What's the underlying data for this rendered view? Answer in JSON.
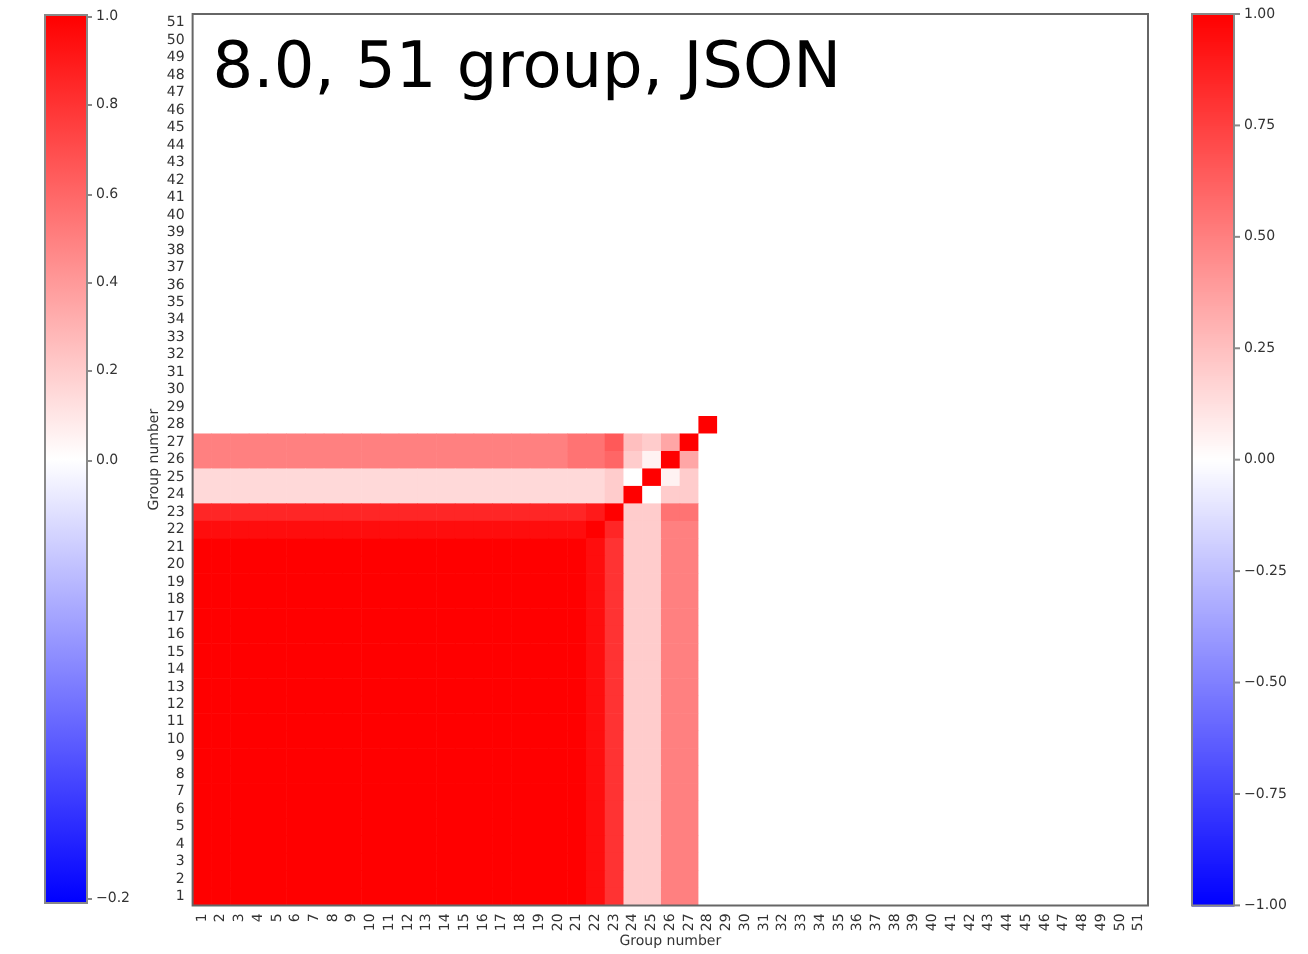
{
  "chart_data": {
    "type": "heatmap",
    "title": "8.0, 51 group, JSON",
    "xlabel": "Group number",
    "ylabel": "Group number",
    "categories": [
      "1",
      "2",
      "3",
      "4",
      "5",
      "6",
      "7",
      "8",
      "9",
      "10",
      "11",
      "12",
      "13",
      "14",
      "15",
      "16",
      "17",
      "18",
      "19",
      "20",
      "21",
      "22",
      "23",
      "24",
      "25",
      "26",
      "27",
      "28",
      "29",
      "30",
      "31",
      "32",
      "33",
      "34",
      "35",
      "36",
      "37",
      "38",
      "39",
      "40",
      "41",
      "42",
      "43",
      "44",
      "45",
      "46",
      "47",
      "48",
      "49",
      "50",
      "51"
    ],
    "y_categories": [
      "51",
      "50",
      "49",
      "48",
      "47",
      "46",
      "45",
      "44",
      "43",
      "42",
      "41",
      "40",
      "39",
      "38",
      "37",
      "36",
      "35",
      "34",
      "33",
      "32",
      "31",
      "30",
      "29",
      "28",
      "27",
      "26",
      "25",
      "24",
      "23",
      "22",
      "21",
      "20",
      "19",
      "18",
      "17",
      "16",
      "15",
      "14",
      "13",
      "12",
      "11",
      "10",
      "9",
      "8",
      "7",
      "6",
      "5",
      "4",
      "3",
      "2",
      "1"
    ],
    "clim": [
      -1,
      1
    ],
    "cticks": [
      {
        "value": 1,
        "label": "1.00"
      },
      {
        "value": 0.75,
        "label": "0.75"
      },
      {
        "value": 0.5,
        "label": "0.50"
      },
      {
        "value": 0.25,
        "label": "0.25"
      },
      {
        "value": 0,
        "label": "0.00"
      },
      {
        "value": -0.25,
        "label": "−0.25"
      },
      {
        "value": -0.5,
        "label": "−0.50"
      },
      {
        "value": -0.75,
        "label": "−0.75"
      },
      {
        "value": -1,
        "label": "−1.00"
      }
    ],
    "cells": [
      [
        0,
        0,
        0,
        0,
        0,
        0,
        0,
        0,
        0,
        0,
        0,
        0,
        0,
        0,
        0,
        0,
        0,
        0,
        0,
        0,
        0,
        0,
        0,
        0,
        0,
        0,
        0,
        0,
        0,
        0,
        0,
        0,
        0,
        0,
        0,
        0,
        0,
        0,
        0,
        0,
        0,
        0,
        0,
        0,
        0,
        0,
        0,
        0,
        0,
        0,
        0
      ],
      [
        0,
        0,
        0,
        0,
        0,
        0,
        0,
        0,
        0,
        0,
        0,
        0,
        0,
        0,
        0,
        0,
        0,
        0,
        0,
        0,
        0,
        0,
        0,
        0,
        0,
        0,
        0,
        0,
        0,
        0,
        0,
        0,
        0,
        0,
        0,
        0,
        0,
        0,
        0,
        0,
        0,
        0,
        0,
        0,
        0,
        0,
        0,
        0,
        0,
        0,
        0
      ],
      [
        0,
        0,
        0,
        0,
        0,
        0,
        0,
        0,
        0,
        null,
        0,
        0,
        0,
        0,
        0,
        null,
        0,
        0,
        0,
        0,
        0,
        0,
        null,
        0,
        0,
        0,
        0,
        0,
        0,
        0,
        0,
        0,
        0,
        0,
        0,
        0,
        0,
        0,
        0,
        0,
        0,
        0,
        0,
        0,
        0,
        0,
        0,
        0,
        0,
        0,
        0
      ],
      [
        0,
        0,
        0,
        0,
        0,
        0,
        0,
        0,
        0,
        0,
        0,
        0,
        0,
        0,
        0,
        0,
        0,
        0,
        0,
        0,
        0,
        0,
        0,
        0,
        0,
        0,
        0,
        0,
        0,
        0,
        0,
        0,
        0,
        0,
        0,
        0,
        0,
        0,
        0,
        0,
        0,
        0,
        0,
        0,
        0,
        0,
        0,
        0,
        0,
        0,
        0
      ],
      [
        0,
        0,
        0,
        0,
        0,
        0,
        0,
        0,
        0,
        0,
        0,
        0,
        0,
        0,
        0,
        null,
        0,
        0,
        0,
        0,
        0,
        0,
        0,
        0,
        0,
        0,
        null,
        0,
        0,
        0,
        0,
        0,
        0,
        0,
        0,
        0,
        0,
        0,
        0,
        0,
        0,
        0,
        0,
        0,
        0,
        0,
        0,
        0,
        0,
        0,
        0
      ],
      [
        0,
        0,
        0,
        0,
        0,
        0,
        0,
        0,
        0,
        0,
        0,
        0,
        0,
        0,
        0,
        0,
        0,
        0,
        0,
        0,
        0,
        0,
        0,
        0,
        0,
        0,
        0,
        0,
        0,
        0,
        0,
        0,
        0,
        0,
        0,
        0,
        0,
        0,
        0,
        0,
        0,
        0,
        0,
        0,
        0,
        0,
        0,
        0,
        0,
        0,
        0
      ],
      [
        0,
        0,
        0,
        0,
        0,
        0,
        0,
        0,
        0,
        0,
        0,
        0,
        0,
        0,
        0,
        0,
        0,
        0,
        0,
        0,
        0,
        0,
        0,
        0,
        0,
        0,
        0,
        0,
        0,
        0,
        0,
        0,
        0,
        0,
        0,
        0,
        0,
        0,
        0,
        0,
        0,
        0,
        0,
        0,
        0,
        0,
        0,
        0,
        0,
        0,
        0
      ],
      [
        0,
        0,
        0,
        0,
        0,
        0,
        0,
        0,
        0,
        0,
        0,
        0,
        0,
        0,
        0,
        0,
        0,
        0,
        0,
        0,
        0,
        0,
        0,
        0,
        0,
        0,
        0,
        0,
        0,
        0,
        0,
        0,
        0,
        0,
        0,
        0,
        0,
        0,
        0,
        0,
        0,
        0,
        0,
        0,
        0,
        0,
        0,
        0,
        0,
        0,
        0
      ],
      [
        0,
        0,
        0,
        0,
        0,
        0,
        0,
        0,
        0,
        0,
        0,
        0,
        0,
        0,
        0,
        0,
        0,
        0,
        0,
        0,
        0,
        0,
        0,
        0,
        0,
        0,
        0,
        0,
        0,
        0,
        0,
        0,
        0,
        0,
        0,
        0,
        0,
        0,
        0,
        0,
        0,
        0,
        0,
        0,
        0,
        0,
        0,
        0,
        0,
        0,
        0
      ],
      [
        0,
        0,
        0,
        0,
        0,
        0,
        0,
        0,
        0,
        0,
        0,
        0,
        0,
        0,
        0,
        0,
        0,
        0,
        0,
        0,
        0,
        0,
        0,
        0,
        0,
        0,
        0,
        0,
        0,
        0,
        0,
        0,
        0,
        0,
        0,
        0,
        0,
        0,
        0,
        0,
        0,
        0,
        0,
        0,
        0,
        0,
        0,
        0,
        0,
        0,
        0
      ],
      [
        0,
        0,
        0,
        0,
        0,
        0,
        0,
        0,
        0,
        0,
        0,
        0,
        0,
        0,
        0,
        0,
        0,
        0,
        0,
        0,
        0,
        0,
        0,
        0,
        0,
        0,
        0,
        0,
        0,
        0,
        0,
        0,
        0,
        0,
        0,
        0,
        0,
        0,
        0,
        0,
        0,
        0,
        0,
        0,
        0,
        0,
        0,
        0,
        0,
        0,
        0
      ],
      [
        0,
        0,
        0,
        0,
        0,
        0,
        0,
        0,
        0,
        0,
        0,
        0,
        0,
        0,
        0,
        0,
        0,
        0,
        0,
        0,
        0,
        0,
        0,
        0,
        0,
        0,
        0,
        0,
        0,
        0,
        0,
        0,
        0,
        0,
        0,
        0,
        0,
        0,
        0,
        0,
        0,
        0,
        0,
        0,
        0,
        0,
        0,
        0,
        0,
        0,
        0
      ],
      [
        0,
        0,
        0,
        0,
        0,
        0,
        0,
        0,
        0,
        0,
        0,
        0,
        0,
        0,
        0,
        0,
        0,
        0,
        0,
        0,
        0,
        0,
        0,
        0,
        0,
        0,
        0,
        0,
        0,
        0,
        0,
        0,
        0,
        0,
        0,
        0,
        0,
        0,
        0,
        0,
        0,
        0,
        0,
        0,
        0,
        0,
        0,
        0,
        0,
        0,
        0
      ],
      [
        0,
        0,
        0,
        0,
        0,
        0,
        0,
        0,
        0,
        0,
        0,
        0,
        0,
        0,
        0,
        0,
        0,
        0,
        0,
        0,
        0,
        0,
        0,
        0,
        0,
        0,
        0,
        0,
        0,
        0,
        0,
        0,
        0,
        0,
        0,
        0,
        0,
        0,
        0,
        0,
        0,
        0,
        0,
        0,
        0,
        0,
        0,
        0,
        0,
        0,
        0
      ],
      [
        0,
        0,
        0,
        0,
        0,
        0,
        0,
        0,
        0,
        0,
        0,
        0,
        0,
        0,
        0,
        0,
        0,
        0,
        0,
        0,
        0,
        0,
        0,
        0,
        0,
        0,
        0,
        0,
        0,
        0,
        0,
        0,
        0,
        0,
        0,
        0,
        0,
        0,
        0,
        0,
        0,
        0,
        0,
        0,
        0,
        0,
        0,
        0,
        0,
        0,
        0
      ],
      [
        0,
        0,
        0,
        0,
        0,
        0,
        0,
        0,
        0,
        0,
        0,
        0,
        0,
        0,
        0,
        0,
        0,
        0,
        0,
        0,
        0,
        0,
        0,
        0,
        0,
        0,
        0,
        0,
        0,
        0,
        0,
        0,
        0,
        0,
        0,
        0,
        0,
        0,
        0,
        0,
        0,
        0,
        0,
        0,
        0,
        0,
        0,
        0,
        0,
        0,
        0
      ],
      [
        0,
        0,
        0,
        0,
        0,
        0,
        0,
        0,
        0,
        0,
        0,
        0,
        0,
        0,
        0,
        0,
        0,
        0,
        0,
        0,
        0,
        0,
        0,
        0,
        0,
        0,
        0,
        0,
        0,
        0,
        0,
        0,
        0,
        0,
        0,
        0,
        0,
        0,
        0,
        0,
        0,
        0,
        0,
        0,
        0,
        0,
        0,
        0,
        0,
        0,
        0
      ],
      [
        0,
        0,
        0,
        0,
        0,
        0,
        0,
        0,
        0,
        0,
        0,
        0,
        0,
        0,
        0,
        0,
        0,
        0,
        0,
        0,
        0,
        0,
        0,
        0,
        0,
        0,
        0,
        0,
        0,
        0,
        0,
        0,
        0,
        0,
        0,
        0,
        0,
        0,
        0,
        0,
        0,
        0,
        0,
        0,
        0,
        0,
        0,
        0,
        0,
        0,
        0
      ],
      [
        0,
        0,
        0,
        0,
        0,
        0,
        0,
        0,
        0,
        0,
        0,
        0,
        0,
        0,
        0,
        0,
        0,
        0,
        0,
        0,
        0,
        0,
        0,
        0,
        0,
        0,
        0,
        0,
        0,
        0,
        0,
        0,
        0,
        0,
        0,
        0,
        0,
        0,
        0,
        0,
        0,
        0,
        0,
        0,
        0,
        0,
        0,
        0,
        0,
        0,
        0
      ],
      [
        0,
        0,
        0,
        0,
        0,
        0,
        0,
        0,
        0,
        0,
        0,
        0,
        0,
        0,
        0,
        0,
        0,
        0,
        0,
        0,
        0,
        0,
        0,
        0,
        0,
        0,
        0,
        0,
        0,
        0,
        0,
        0,
        0,
        0,
        0,
        0,
        0,
        0,
        0,
        0,
        0,
        0,
        0,
        0,
        0,
        0,
        0,
        0,
        0,
        0,
        0
      ],
      [
        0,
        0,
        0,
        0,
        0,
        0,
        0,
        0,
        0,
        0,
        0,
        0,
        0,
        0,
        0,
        0,
        0,
        0,
        0,
        0,
        0,
        0,
        0,
        0,
        0,
        0,
        0,
        0,
        0,
        0,
        0,
        0,
        0,
        0,
        0,
        0,
        0,
        0,
        0,
        0,
        0,
        0,
        0,
        0,
        0,
        0,
        0,
        0,
        0,
        0,
        0
      ],
      [
        0,
        0,
        0,
        0,
        0,
        0,
        0,
        0,
        0,
        0,
        0,
        0,
        0,
        0,
        0,
        0,
        0,
        0,
        0,
        0,
        0,
        0,
        0,
        0,
        0,
        0,
        0,
        0,
        0,
        0,
        0,
        0,
        0,
        0,
        0,
        0,
        0,
        0,
        0,
        0,
        0,
        0,
        0,
        0,
        0,
        0,
        0,
        0,
        0,
        0,
        0
      ],
      [
        0,
        0,
        0,
        0,
        0,
        0,
        0,
        0,
        0,
        0,
        0,
        0,
        0,
        0,
        0,
        0,
        0,
        0,
        0,
        0,
        0,
        0,
        0,
        0,
        0,
        0,
        0,
        0,
        0,
        0,
        0,
        0,
        0,
        0,
        0,
        0,
        0,
        0,
        0,
        0,
        0,
        0,
        0,
        0,
        0,
        0,
        0,
        0,
        0,
        0,
        0
      ],
      [
        0,
        0,
        0,
        0,
        0,
        0,
        0,
        0,
        0,
        0,
        0,
        0,
        0,
        0,
        0,
        0,
        0,
        0,
        0,
        0,
        0,
        0,
        0,
        0,
        0,
        0,
        0,
        1,
        0,
        0,
        0,
        0,
        0,
        0,
        0,
        0,
        0,
        0,
        0,
        0,
        0,
        0,
        0,
        0,
        0,
        0,
        0,
        0,
        0,
        0,
        0
      ],
      [
        0.5,
        0.5,
        0.5,
        0.5,
        0.5,
        0.5,
        0.5,
        0.5,
        0.5,
        0.5,
        0.5,
        0.5,
        0.5,
        0.5,
        0.5,
        0.5,
        0.5,
        0.5,
        0.5,
        0.5,
        0.55,
        0.55,
        0.65,
        0.25,
        0.2,
        0.35,
        1,
        0,
        0,
        0,
        0,
        0,
        0,
        0,
        0,
        0,
        0,
        0,
        0,
        0,
        0,
        0,
        0,
        0,
        0,
        0,
        0,
        0,
        0,
        0,
        0
      ],
      [
        0.5,
        0.5,
        0.5,
        0.5,
        0.5,
        0.5,
        0.5,
        0.5,
        0.5,
        0.5,
        0.5,
        0.5,
        0.5,
        0.5,
        0.5,
        0.5,
        0.5,
        0.5,
        0.5,
        0.5,
        0.55,
        0.55,
        0.6,
        0.2,
        0.05,
        1,
        0.35,
        0,
        0,
        0,
        0,
        0,
        0,
        0,
        0,
        0,
        0,
        0,
        0,
        0,
        0,
        0,
        0,
        0,
        0,
        0,
        0,
        0,
        0,
        0,
        0
      ],
      [
        0.15,
        0.15,
        0.15,
        0.15,
        0.15,
        0.15,
        0.15,
        0.15,
        0.15,
        0.15,
        0.15,
        0.15,
        0.15,
        0.15,
        0.15,
        0.15,
        0.15,
        0.15,
        0.15,
        0.15,
        0.15,
        0.15,
        0.2,
        0,
        1,
        0.05,
        0.2,
        0,
        0,
        0,
        0,
        0,
        0,
        0,
        0,
        0,
        0,
        0,
        0,
        0,
        0,
        0,
        0,
        0,
        0,
        0,
        0,
        0,
        0,
        0,
        0
      ],
      [
        0.15,
        0.15,
        0.15,
        0.15,
        0.15,
        0.15,
        0.15,
        0.15,
        0.15,
        0.15,
        0.15,
        0.15,
        0.15,
        0.15,
        0.15,
        0.15,
        0.15,
        0.15,
        0.15,
        0.15,
        0.15,
        0.15,
        0.2,
        1,
        0,
        0.2,
        0.2,
        0,
        0,
        0,
        0,
        0,
        0,
        0,
        0,
        0,
        0,
        0,
        0,
        0,
        0,
        0,
        0,
        0,
        0,
        0,
        0,
        0,
        0,
        0,
        0
      ],
      [
        0.85,
        0.85,
        0.85,
        0.85,
        0.85,
        0.85,
        0.85,
        0.85,
        0.85,
        0.85,
        0.85,
        0.85,
        0.85,
        0.85,
        0.85,
        0.85,
        0.85,
        0.85,
        0.85,
        0.85,
        0.85,
        0.9,
        1,
        0.2,
        0.2,
        0.55,
        0.55,
        0,
        0,
        0,
        0,
        0,
        0,
        0,
        0,
        0,
        0,
        0,
        0,
        0,
        0,
        0,
        0,
        0,
        0,
        0,
        0,
        0,
        0,
        0,
        0
      ],
      [
        0.95,
        0.95,
        0.95,
        0.95,
        0.95,
        0.95,
        0.95,
        0.95,
        0.95,
        0.95,
        0.95,
        0.95,
        0.95,
        0.95,
        0.95,
        0.95,
        0.95,
        0.95,
        0.95,
        0.95,
        0.95,
        1,
        0.85,
        0.2,
        0.2,
        0.5,
        0.5,
        0,
        0,
        0,
        0,
        0,
        0,
        0,
        0,
        0,
        0,
        0,
        0,
        0,
        0,
        0,
        0,
        0,
        0,
        0,
        0,
        0,
        0,
        0,
        0
      ],
      [
        1,
        1,
        1,
        1,
        1,
        1,
        1,
        1,
        1,
        1,
        1,
        1,
        1,
        1,
        1,
        1,
        1,
        1,
        1,
        1,
        1,
        0.95,
        0.8,
        0.2,
        0.2,
        0.5,
        0.5,
        0,
        0,
        0,
        0,
        0,
        0,
        0,
        0,
        0,
        0,
        0,
        0,
        0,
        0,
        0,
        0,
        0,
        0,
        0,
        0,
        0,
        0,
        0,
        0
      ],
      [
        1,
        1,
        1,
        1,
        1,
        1,
        1,
        1,
        1,
        1,
        1,
        1,
        1,
        1,
        1,
        1,
        1,
        1,
        1,
        1,
        1,
        0.95,
        0.8,
        0.2,
        0.2,
        0.5,
        0.5,
        0,
        0,
        0,
        0,
        0,
        0,
        0,
        0,
        0,
        0,
        0,
        0,
        0,
        0,
        0,
        0,
        0,
        0,
        0,
        0,
        0,
        0,
        0,
        0
      ],
      [
        1,
        1,
        1,
        1,
        1,
        1,
        1,
        1,
        1,
        1,
        1,
        1,
        1,
        1,
        1,
        1,
        1,
        1,
        1,
        1,
        1,
        0.95,
        0.8,
        0.2,
        0.2,
        0.5,
        0.5,
        0,
        0,
        0,
        0,
        0,
        0,
        0,
        0,
        0,
        0,
        0,
        0,
        0,
        0,
        0,
        0,
        0,
        0,
        0,
        0,
        0,
        0,
        0,
        0
      ],
      [
        1,
        1,
        1,
        1,
        1,
        1,
        1,
        1,
        1,
        1,
        1,
        1,
        1,
        1,
        1,
        1,
        1,
        1,
        1,
        1,
        1,
        0.95,
        0.8,
        0.2,
        0.2,
        0.5,
        0.5,
        0,
        0,
        0,
        0,
        0,
        0,
        0,
        0,
        0,
        0,
        0,
        0,
        0,
        0,
        0,
        0,
        0,
        0,
        0,
        0,
        0,
        0,
        0,
        0
      ],
      [
        1,
        1,
        1,
        1,
        1,
        1,
        1,
        1,
        1,
        1,
        1,
        1,
        1,
        1,
        1,
        1,
        1,
        1,
        1,
        1,
        1,
        0.95,
        0.8,
        0.2,
        0.2,
        0.5,
        0.5,
        0,
        0,
        0,
        0,
        0,
        0,
        0,
        0,
        0,
        0,
        0,
        0,
        0,
        0,
        0,
        0,
        0,
        0,
        0,
        0,
        0,
        0,
        0,
        0
      ],
      [
        1,
        1,
        1,
        1,
        1,
        1,
        1,
        1,
        1,
        1,
        1,
        1,
        1,
        1,
        1,
        1,
        1,
        1,
        1,
        1,
        1,
        0.95,
        0.8,
        0.2,
        0.2,
        0.5,
        0.5,
        0,
        0,
        0,
        0,
        0,
        0,
        0,
        0,
        0,
        0,
        0,
        0,
        0,
        0,
        0,
        0,
        0,
        0,
        0,
        0,
        0,
        0,
        0,
        0
      ],
      [
        1,
        1,
        1,
        1,
        1,
        1,
        1,
        1,
        1,
        1,
        1,
        1,
        1,
        1,
        1,
        1,
        1,
        1,
        1,
        1,
        1,
        0.95,
        0.8,
        0.2,
        0.2,
        0.5,
        0.5,
        0,
        0,
        0,
        0,
        0,
        0,
        0,
        0,
        0,
        0,
        0,
        0,
        0,
        0,
        0,
        0,
        0,
        0,
        0,
        0,
        0,
        0,
        0,
        0
      ],
      [
        1,
        1,
        1,
        1,
        1,
        1,
        1,
        1,
        1,
        1,
        1,
        1,
        1,
        1,
        1,
        1,
        1,
        1,
        1,
        1,
        1,
        0.95,
        0.8,
        0.2,
        0.2,
        0.5,
        0.5,
        0,
        0,
        0,
        0,
        0,
        0,
        0,
        0,
        0,
        0,
        0,
        0,
        0,
        0,
        0,
        0,
        0,
        0,
        0,
        0,
        0,
        0,
        0,
        0
      ],
      [
        1,
        1,
        1,
        1,
        1,
        1,
        1,
        1,
        1,
        1,
        1,
        1,
        1,
        1,
        1,
        1,
        1,
        1,
        1,
        1,
        1,
        0.95,
        0.8,
        0.2,
        0.2,
        0.5,
        0.5,
        0,
        0,
        0,
        0,
        0,
        0,
        0,
        0,
        0,
        0,
        0,
        0,
        0,
        0,
        0,
        0,
        0,
        0,
        0,
        0,
        0,
        0,
        0,
        0
      ],
      [
        1,
        1,
        1,
        1,
        1,
        1,
        1,
        1,
        1,
        1,
        1,
        1,
        1,
        1,
        1,
        1,
        1,
        1,
        1,
        1,
        1,
        0.95,
        0.8,
        0.2,
        0.2,
        0.5,
        0.5,
        0,
        0,
        0,
        0,
        0,
        0,
        0,
        0,
        0,
        0,
        0,
        0,
        0,
        0,
        0,
        0,
        0,
        0,
        0,
        0,
        0,
        0,
        0,
        0
      ],
      [
        1,
        1,
        1,
        1,
        1,
        1,
        1,
        1,
        1,
        1,
        1,
        1,
        1,
        1,
        1,
        1,
        1,
        1,
        1,
        1,
        1,
        0.95,
        0.8,
        0.2,
        0.2,
        0.5,
        0.5,
        0,
        0,
        0,
        0,
        0,
        0,
        0,
        0,
        0,
        0,
        0,
        0,
        0,
        0,
        0,
        0,
        0,
        0,
        0,
        0,
        0,
        0,
        0,
        0
      ],
      [
        1,
        1,
        1,
        1,
        1,
        1,
        1,
        1,
        1,
        1,
        1,
        1,
        1,
        1,
        1,
        1,
        1,
        1,
        1,
        1,
        1,
        0.95,
        0.8,
        0.2,
        0.2,
        0.5,
        0.5,
        0,
        0,
        0,
        0,
        0,
        0,
        0,
        0,
        0,
        0,
        0,
        0,
        0,
        0,
        0,
        0,
        0,
        0,
        0,
        0,
        0,
        0,
        0,
        0
      ],
      [
        1,
        1,
        1,
        1,
        1,
        1,
        1,
        1,
        1,
        1,
        1,
        1,
        1,
        1,
        1,
        1,
        1,
        1,
        1,
        1,
        1,
        0.95,
        0.8,
        0.2,
        0.2,
        0.5,
        0.5,
        0,
        0,
        0,
        0,
        0,
        0,
        0,
        0,
        0,
        0,
        0,
        0,
        0,
        0,
        0,
        0,
        0,
        0,
        0,
        0,
        0,
        0,
        0,
        0
      ],
      [
        1,
        1,
        1,
        1,
        1,
        1,
        1,
        1,
        1,
        1,
        1,
        1,
        1,
        1,
        1,
        1,
        1,
        1,
        1,
        1,
        1,
        0.95,
        0.8,
        0.2,
        0.2,
        0.5,
        0.5,
        0,
        0,
        0,
        0,
        0,
        0,
        0,
        0,
        0,
        0,
        0,
        0,
        0,
        0,
        0,
        0,
        0,
        0,
        0,
        0,
        0,
        0,
        0,
        0
      ],
      [
        1,
        1,
        1,
        1,
        1,
        1,
        1,
        1,
        1,
        1,
        1,
        1,
        1,
        1,
        1,
        1,
        1,
        1,
        1,
        1,
        1,
        0.95,
        0.8,
        0.2,
        0.2,
        0.5,
        0.5,
        0,
        0,
        0,
        0,
        0,
        0,
        0,
        0,
        0,
        0,
        0,
        0,
        0,
        0,
        0,
        0,
        0,
        0,
        0,
        0,
        0,
        0,
        0,
        0
      ],
      [
        1,
        1,
        1,
        1,
        1,
        1,
        1,
        1,
        1,
        1,
        1,
        1,
        1,
        1,
        1,
        1,
        1,
        1,
        1,
        1,
        1,
        0.95,
        0.8,
        0.2,
        0.2,
        0.5,
        0.5,
        0,
        0,
        0,
        0,
        0,
        0,
        0,
        0,
        0,
        0,
        0,
        0,
        0,
        0,
        0,
        0,
        0,
        0,
        0,
        0,
        0,
        0,
        0,
        0
      ],
      [
        1,
        1,
        1,
        1,
        1,
        1,
        1,
        1,
        1,
        1,
        1,
        1,
        1,
        1,
        1,
        1,
        1,
        1,
        1,
        1,
        1,
        0.95,
        0.8,
        0.2,
        0.2,
        0.5,
        0.5,
        0,
        0,
        0,
        0,
        0,
        0,
        0,
        0,
        0,
        0,
        0,
        0,
        0,
        0,
        0,
        0,
        0,
        0,
        0,
        0,
        0,
        0,
        0,
        0
      ],
      [
        1,
        1,
        1,
        1,
        1,
        1,
        1,
        1,
        1,
        1,
        1,
        1,
        1,
        1,
        1,
        1,
        1,
        1,
        1,
        1,
        1,
        0.95,
        0.8,
        0.2,
        0.2,
        0.5,
        0.5,
        0,
        0,
        0,
        0,
        0,
        0,
        0,
        0,
        0,
        0,
        0,
        0,
        0,
        0,
        0,
        0,
        0,
        0,
        0,
        0,
        0,
        0,
        0,
        0
      ],
      [
        1,
        1,
        1,
        1,
        1,
        1,
        1,
        1,
        1,
        1,
        1,
        1,
        1,
        1,
        1,
        1,
        1,
        1,
        1,
        1,
        1,
        0.95,
        0.8,
        0.2,
        0.2,
        0.5,
        0.5,
        0,
        0,
        0,
        0,
        0,
        0,
        0,
        0,
        0,
        0,
        0,
        0,
        0,
        0,
        0,
        0,
        0,
        0,
        0,
        0,
        0,
        0,
        0,
        0
      ],
      [
        1,
        1,
        1,
        1,
        1,
        1,
        1,
        1,
        1,
        1,
        1,
        1,
        1,
        1,
        1,
        1,
        1,
        1,
        1,
        1,
        1,
        0.95,
        0.8,
        0.2,
        0.2,
        0.5,
        0.5,
        0,
        0,
        0,
        0,
        0,
        0,
        0,
        0,
        0,
        0,
        0,
        0,
        0,
        0,
        0,
        0,
        0,
        0,
        0,
        0,
        0,
        0,
        0,
        0
      ],
      [
        1,
        1,
        1,
        1,
        1,
        1,
        1,
        1,
        1,
        1,
        1,
        1,
        1,
        1,
        1,
        1,
        1,
        1,
        1,
        1,
        1,
        0.95,
        0.8,
        0.2,
        0.2,
        0.5,
        0.5,
        0,
        0,
        0,
        0,
        0,
        0,
        0,
        0,
        0,
        0,
        0,
        0,
        0,
        0,
        0,
        0,
        0,
        0,
        0,
        0,
        0,
        0,
        0,
        0
      ]
    ],
    "annotations": [
      "1.0",
      "0.8",
      "0.6",
      "0.4",
      "0.2",
      "0.0",
      "−0.2"
    ]
  }
}
